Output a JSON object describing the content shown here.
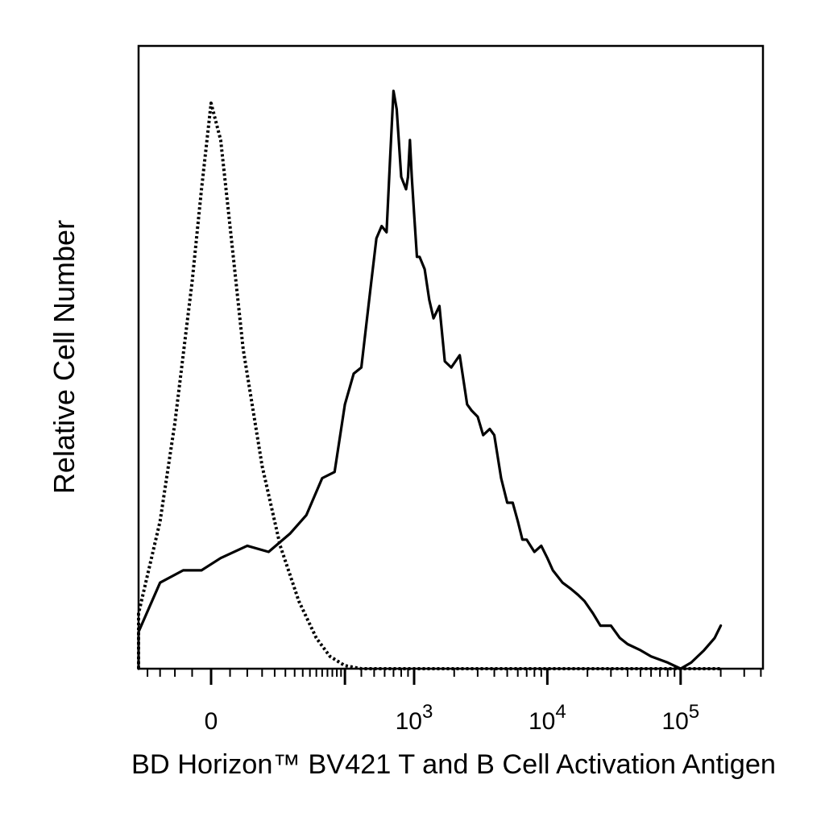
{
  "chart_data": {
    "type": "line",
    "title": "",
    "xlabel": "BD Horizon™ BV421 T and B Cell Activation Antigen",
    "ylabel": "Relative Cell Number",
    "x_scale": "biexponential",
    "xlim": [
      -300,
      200000
    ],
    "ylim": [
      0,
      100
    ],
    "y_ticks": false,
    "grid": false,
    "legend": "none",
    "x_tick_labels": [
      {
        "value": 0,
        "base": "0",
        "exp": ""
      },
      {
        "value": 1000,
        "base": "10",
        "exp": "3"
      },
      {
        "value": 10000,
        "base": "10",
        "exp": "4"
      },
      {
        "value": 100000,
        "base": "10",
        "exp": "5"
      }
    ],
    "series": [
      {
        "style": "dotted",
        "color": "#000000",
        "x": [
          -300,
          -200,
          -150,
          -100,
          -60,
          -40,
          -20,
          -10,
          0,
          10,
          20,
          35,
          60,
          90,
          130,
          180,
          230,
          300,
          400,
          600,
          1000,
          10000,
          200000
        ],
        "y": [
          0,
          1,
          3,
          9,
          24,
          40,
          63,
          78,
          92,
          86,
          72,
          52,
          33,
          20,
          11,
          5,
          2,
          0.5,
          0,
          0,
          0,
          0,
          0
        ]
      },
      {
        "style": "solid",
        "color": "#000000",
        "x": [
          -300,
          -200,
          -150,
          -100,
          -60,
          -30,
          -10,
          10,
          40,
          70,
          110,
          150,
          200,
          250,
          300,
          350,
          400,
          470,
          520,
          570,
          620,
          660,
          700,
          740,
          800,
          870,
          900,
          930,
          960,
          1000,
          1050,
          1100,
          1200,
          1300,
          1400,
          1550,
          1700,
          1900,
          2200,
          2500,
          2700,
          3000,
          3300,
          3700,
          4000,
          4500,
          5000,
          5500,
          6000,
          6500,
          7000,
          8000,
          9000,
          10000,
          11000,
          13000,
          15000,
          17000,
          19000,
          22000,
          25000,
          30000,
          35000,
          40000,
          50000,
          60000,
          80000,
          100000,
          120000,
          150000,
          180000,
          200000
        ],
        "y": [
          0,
          1,
          2,
          6,
          14,
          16,
          16,
          18,
          20,
          19,
          22,
          25,
          31,
          32,
          43,
          48,
          49,
          62,
          70,
          72,
          71,
          83,
          94,
          91,
          80,
          78,
          80,
          86,
          80,
          74,
          67,
          67,
          65,
          60,
          57,
          59,
          50,
          49,
          51,
          43,
          42,
          41,
          38,
          39,
          38,
          31,
          27,
          27,
          24,
          21,
          21,
          19,
          20,
          18,
          16,
          14,
          13,
          12,
          11,
          9,
          7,
          7,
          5,
          4,
          3,
          2,
          1,
          0,
          1,
          3,
          5,
          7
        ]
      }
    ]
  }
}
